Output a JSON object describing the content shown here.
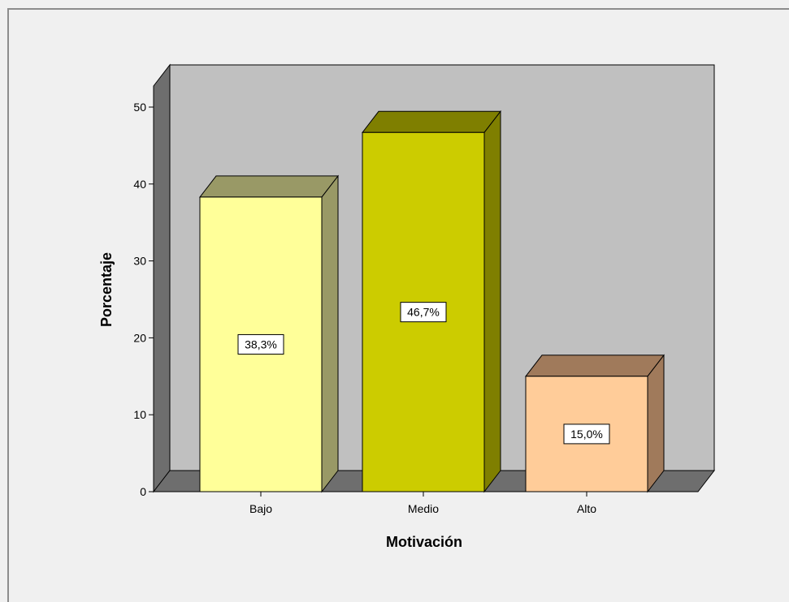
{
  "chart_data": {
    "type": "bar",
    "categories": [
      "Bajo",
      "Medio",
      "Alto"
    ],
    "values": [
      38.3,
      46.7,
      15.0
    ],
    "data_labels": [
      "38,3%",
      "46,7%",
      "15,0%"
    ],
    "xlabel": "Motivación",
    "ylabel": "Porcentaje",
    "ylim": [
      0,
      50
    ],
    "yticks": [
      0,
      10,
      20,
      30,
      40,
      50
    ],
    "style": "3d",
    "grid": false,
    "colors": {
      "bar_fronts": [
        "#ffff99",
        "#cccc00",
        "#ffcc99"
      ],
      "bar_tops": [
        "#999966",
        "#7f7f00",
        "#a07a5b"
      ],
      "bar_sides": [
        "#999966",
        "#7f7f00",
        "#a07a5b"
      ],
      "back_wall": "#c0c0c0",
      "side_wall": "#6e6e6e",
      "floor": "#6e6e6e"
    }
  }
}
